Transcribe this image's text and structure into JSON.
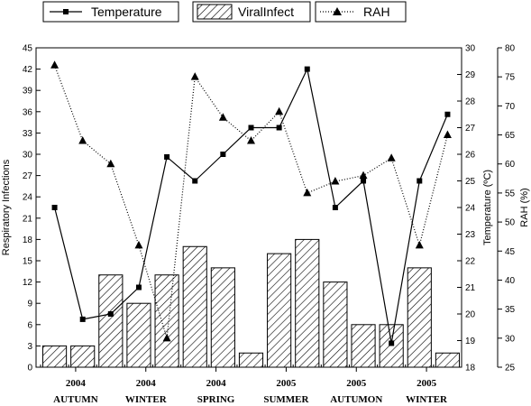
{
  "chart_data": {
    "type": "bar",
    "legend_placement": "top",
    "grid": false,
    "series": [
      {
        "name": "Temperature",
        "type": "line",
        "axis": "right-inner",
        "marker": "square",
        "line_style": "solid",
        "values": [
          24.0,
          19.8,
          20.0,
          21.0,
          25.9,
          25.0,
          26.0,
          27.0,
          27.0,
          29.2,
          24.0,
          25.0,
          18.9,
          25.0,
          27.5
        ]
      },
      {
        "name": "ViralInfect",
        "type": "bar",
        "axis": "left",
        "pattern": "diagonal-hatch",
        "values": [
          3,
          3,
          13,
          9,
          13,
          17,
          14,
          2,
          16,
          18,
          12,
          6,
          6,
          14,
          2
        ]
      },
      {
        "name": "RAH",
        "type": "line",
        "axis": "right-outer",
        "marker": "triangle",
        "line_style": "dotted",
        "values": [
          77,
          64,
          60,
          46,
          30,
          75,
          68,
          64,
          69,
          55,
          57,
          58,
          61,
          46,
          65
        ]
      }
    ],
    "axes": {
      "left": {
        "label": "Respiratory Infections",
        "min": 0,
        "max": 45,
        "ticks": [
          "0",
          "3",
          "6",
          "9",
          "12",
          "15",
          "18",
          "21",
          "24",
          "27",
          "30",
          "33",
          "36",
          "39",
          "42",
          "45"
        ]
      },
      "right_inner": {
        "label": "Temperature (ºC)",
        "min": 18,
        "max": 30,
        "ticks": [
          "18",
          "19",
          "20",
          "21",
          "22",
          "23",
          "24",
          "25",
          "26",
          "27",
          "28",
          "29",
          "30"
        ]
      },
      "right_outer": {
        "label": "RAH (%)",
        "min": 25,
        "max": 80,
        "ticks": [
          "25",
          "30",
          "35",
          "40",
          "45",
          "50",
          "55",
          "60",
          "65",
          "70",
          "75",
          "80"
        ]
      }
    },
    "season_groups": [
      {
        "year": "2004",
        "season": "AUTUMN"
      },
      {
        "year": "2004",
        "season": "WINTER"
      },
      {
        "year": "2004",
        "season": "SPRING"
      },
      {
        "year": "2005",
        "season": "SUMMER"
      },
      {
        "year": "2005",
        "season": "AUTUMON"
      },
      {
        "year": "2005",
        "season": "WINTER"
      }
    ]
  }
}
